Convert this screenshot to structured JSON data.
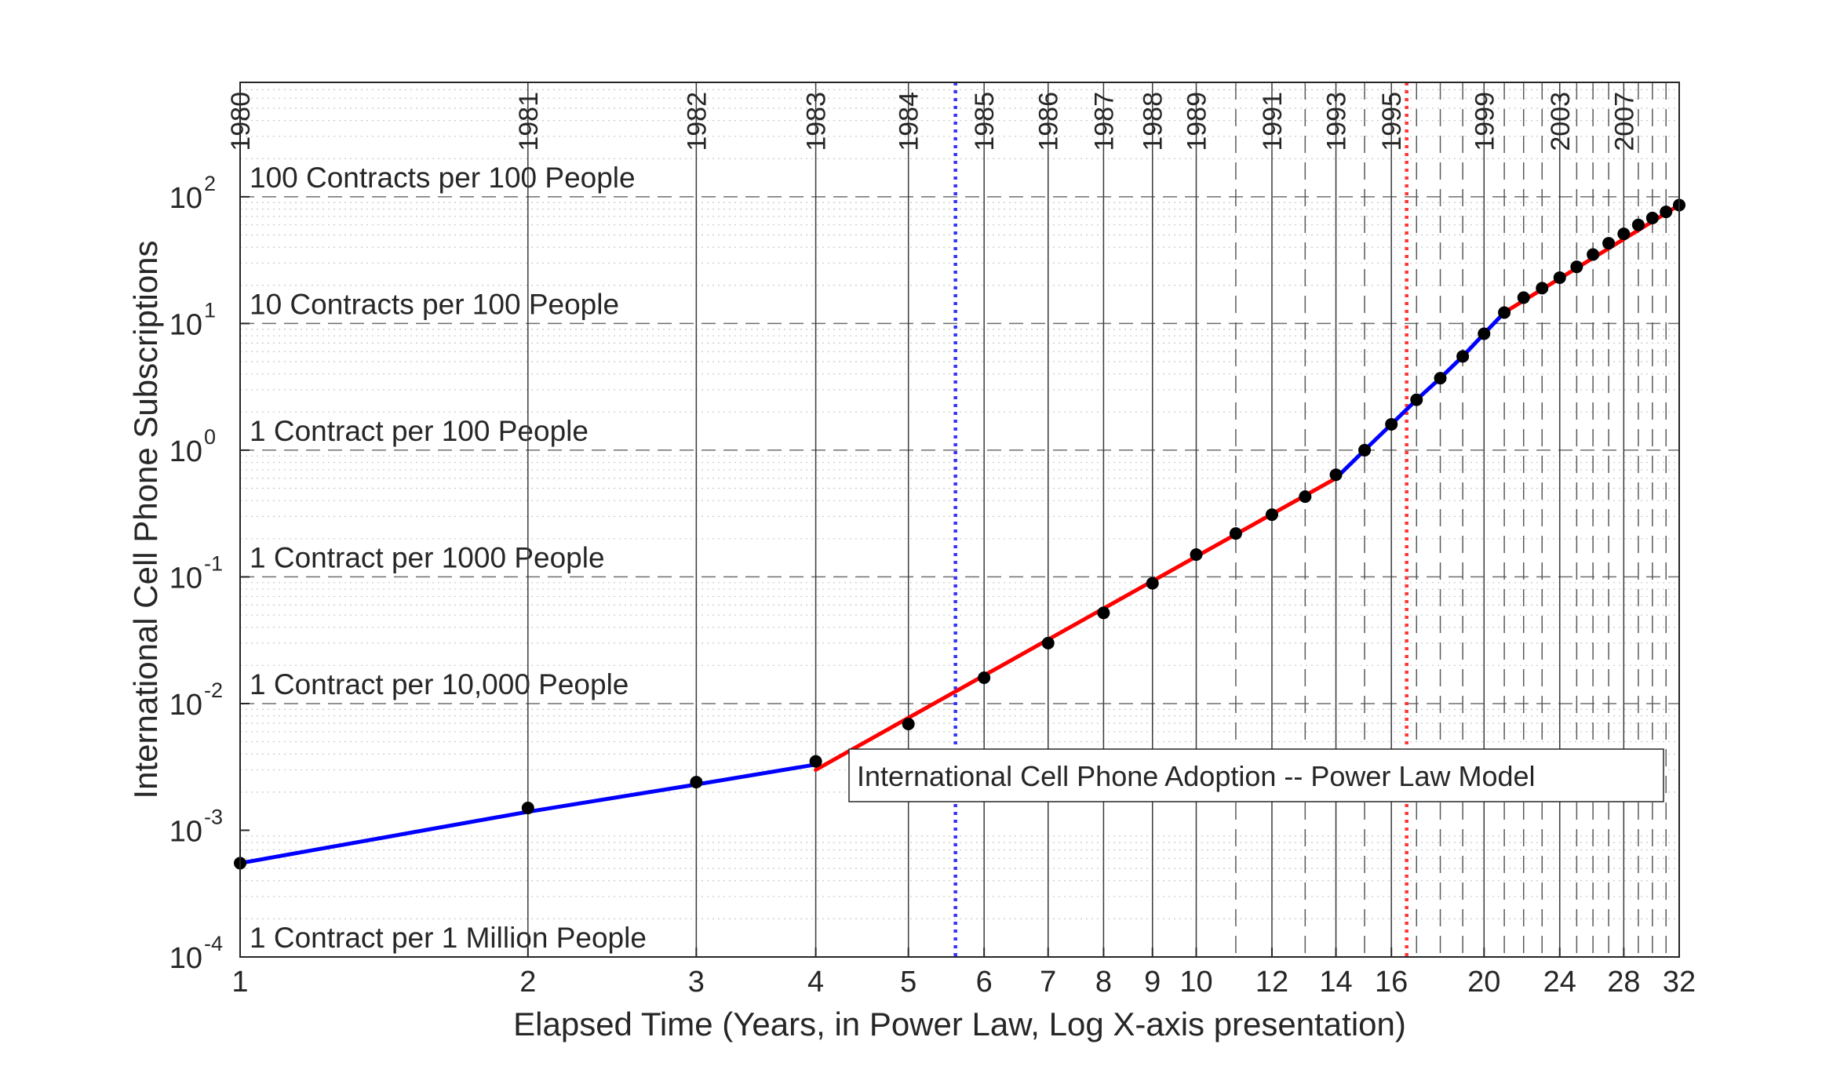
{
  "chart_data": {
    "type": "line",
    "xlabel": "Elapsed Time (Years, in Power Law, Log X-axis presentation)",
    "ylabel": "International Cell Phone Subscriptions",
    "x_scale": "log",
    "y_scale": "log",
    "xlim": [
      1,
      32
    ],
    "ylim": [
      0.0001,
      800
    ],
    "grid": "major and minor",
    "x_ticks": [
      {
        "value": 1,
        "label": "1"
      },
      {
        "value": 2,
        "label": "2"
      },
      {
        "value": 3,
        "label": "3"
      },
      {
        "value": 4,
        "label": "4"
      },
      {
        "value": 5,
        "label": "5"
      },
      {
        "value": 6,
        "label": "6"
      },
      {
        "value": 7,
        "label": "7"
      },
      {
        "value": 8,
        "label": "8"
      },
      {
        "value": 9,
        "label": "9"
      },
      {
        "value": 10,
        "label": "10"
      },
      {
        "value": 12,
        "label": "12"
      },
      {
        "value": 14,
        "label": "14"
      },
      {
        "value": 16,
        "label": "16"
      },
      {
        "value": 20,
        "label": "20"
      },
      {
        "value": 24,
        "label": "24"
      },
      {
        "value": 28,
        "label": "28"
      },
      {
        "value": 32,
        "label": "32"
      }
    ],
    "y_ticks": [
      {
        "value": 0.0001,
        "base": "10",
        "exp": "-4"
      },
      {
        "value": 0.001,
        "base": "10",
        "exp": "-3"
      },
      {
        "value": 0.01,
        "base": "10",
        "exp": "-2"
      },
      {
        "value": 0.1,
        "base": "10",
        "exp": "-1"
      },
      {
        "value": 1,
        "base": "10",
        "exp": "0"
      },
      {
        "value": 10,
        "base": "10",
        "exp": "1"
      },
      {
        "value": 100,
        "base": "10",
        "exp": "2"
      }
    ],
    "year_markers": [
      {
        "x": 1,
        "label": "1980",
        "style": "solid"
      },
      {
        "x": 2,
        "label": "1981",
        "style": "solid"
      },
      {
        "x": 3,
        "label": "1982",
        "style": "solid"
      },
      {
        "x": 4,
        "label": "1983",
        "style": "solid"
      },
      {
        "x": 5,
        "label": "1984",
        "style": "solid"
      },
      {
        "x": 6,
        "label": "1985",
        "style": "solid"
      },
      {
        "x": 7,
        "label": "1986",
        "style": "solid"
      },
      {
        "x": 8,
        "label": "1987",
        "style": "solid"
      },
      {
        "x": 9,
        "label": "1988",
        "style": "solid"
      },
      {
        "x": 10,
        "label": "1989",
        "style": "solid"
      },
      {
        "x": 11,
        "label": "",
        "style": "dashed"
      },
      {
        "x": 12,
        "label": "1991",
        "style": "solid"
      },
      {
        "x": 13,
        "label": "",
        "style": "dashed"
      },
      {
        "x": 14,
        "label": "1993",
        "style": "solid"
      },
      {
        "x": 15,
        "label": "",
        "style": "dashed"
      },
      {
        "x": 16,
        "label": "1995",
        "style": "solid"
      },
      {
        "x": 17,
        "label": "",
        "style": "dashed"
      },
      {
        "x": 18,
        "label": "",
        "style": "dashed"
      },
      {
        "x": 19,
        "label": "",
        "style": "dashed"
      },
      {
        "x": 20,
        "label": "1999",
        "style": "solid"
      },
      {
        "x": 21,
        "label": "",
        "style": "dashed"
      },
      {
        "x": 22,
        "label": "",
        "style": "dashed"
      },
      {
        "x": 23,
        "label": "",
        "style": "dashed"
      },
      {
        "x": 24,
        "label": "2003",
        "style": "solid"
      },
      {
        "x": 25,
        "label": "",
        "style": "dashed"
      },
      {
        "x": 26,
        "label": "",
        "style": "dashed"
      },
      {
        "x": 27,
        "label": "",
        "style": "dashed"
      },
      {
        "x": 28,
        "label": "2007",
        "style": "solid"
      },
      {
        "x": 29,
        "label": "",
        "style": "dashed"
      },
      {
        "x": 30,
        "label": "",
        "style": "dashed"
      },
      {
        "x": 31,
        "label": "",
        "style": "dashed"
      }
    ],
    "level_lines": [
      {
        "y": 100,
        "label": "100 Contracts per 100 People"
      },
      {
        "y": 10,
        "label": "10 Contracts per 100 People"
      },
      {
        "y": 1,
        "label": "1 Contract per 100 People"
      },
      {
        "y": 0.1,
        "label": "1 Contract per 1000 People"
      },
      {
        "y": 0.01,
        "label": "1 Contract per 10,000 People"
      },
      {
        "y": 0.0001,
        "label": "1 Contract per 1 Million People"
      }
    ],
    "regime_markers": [
      {
        "x": 5.6,
        "color": "#3333ff"
      },
      {
        "x": 16.6,
        "color": "#ff3333"
      }
    ],
    "data_points": [
      {
        "x": 1,
        "y": 0.00055
      },
      {
        "x": 2,
        "y": 0.0015
      },
      {
        "x": 3,
        "y": 0.0024
      },
      {
        "x": 4,
        "y": 0.0035
      },
      {
        "x": 5,
        "y": 0.0069
      },
      {
        "x": 6,
        "y": 0.016
      },
      {
        "x": 7,
        "y": 0.03
      },
      {
        "x": 8,
        "y": 0.052
      },
      {
        "x": 9,
        "y": 0.089
      },
      {
        "x": 10,
        "y": 0.15
      },
      {
        "x": 11,
        "y": 0.22
      },
      {
        "x": 12,
        "y": 0.31
      },
      {
        "x": 13,
        "y": 0.43
      },
      {
        "x": 14,
        "y": 0.64
      },
      {
        "x": 15,
        "y": 1.0
      },
      {
        "x": 16,
        "y": 1.6
      },
      {
        "x": 17,
        "y": 2.5
      },
      {
        "x": 18,
        "y": 3.7
      },
      {
        "x": 19,
        "y": 5.5
      },
      {
        "x": 20,
        "y": 8.3
      },
      {
        "x": 21,
        "y": 12.2
      },
      {
        "x": 22,
        "y": 16
      },
      {
        "x": 23,
        "y": 19
      },
      {
        "x": 24,
        "y": 23
      },
      {
        "x": 25,
        "y": 28
      },
      {
        "x": 26,
        "y": 35
      },
      {
        "x": 27,
        "y": 43
      },
      {
        "x": 28,
        "y": 51
      },
      {
        "x": 29,
        "y": 60
      },
      {
        "x": 30,
        "y": 68
      },
      {
        "x": 31,
        "y": 76
      },
      {
        "x": 32,
        "y": 86
      }
    ],
    "segments": [
      {
        "color": "#0000ff",
        "points": [
          [
            1,
            0.00055
          ],
          [
            2,
            0.0014
          ],
          [
            3,
            0.0023
          ],
          [
            4,
            0.0033
          ]
        ]
      },
      {
        "color": "#ff0000",
        "points": [
          [
            4,
            0.003
          ],
          [
            14,
            0.6
          ]
        ]
      },
      {
        "color": "#0000ff",
        "points": [
          [
            14,
            0.6
          ],
          [
            15,
            1.0
          ],
          [
            16,
            1.6
          ],
          [
            17,
            2.5
          ],
          [
            18,
            3.7
          ],
          [
            19,
            5.5
          ],
          [
            20,
            8.3
          ],
          [
            21,
            12.2
          ]
        ]
      },
      {
        "color": "#ff0000",
        "points": [
          [
            21,
            12.2
          ],
          [
            32,
            86
          ]
        ]
      }
    ],
    "legend": {
      "text": "International Cell Phone Adoption -- Power Law Model",
      "placement": "center"
    }
  }
}
